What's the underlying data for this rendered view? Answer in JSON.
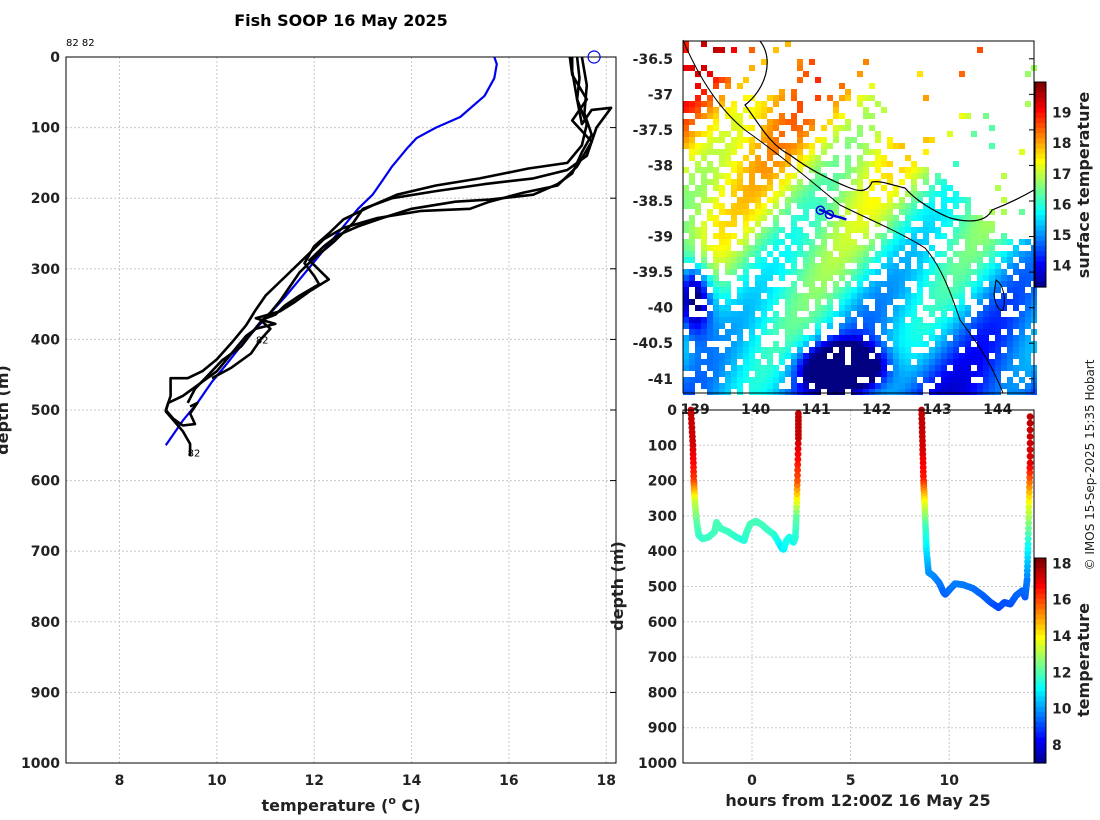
{
  "title": "Fish SOOP 16 May 2025",
  "watermark": "© IMOS 15-Sep-2025 15:35 Hobart",
  "chart_data": [
    {
      "type": "line",
      "name": "temperature-profile",
      "xlabel": "temperature (° C)",
      "xlabel_main": "temperature (",
      "xlabel_sup": "o",
      "xlabel_end": " C)",
      "ylabel": "depth (m)",
      "xlim": [
        6.9,
        18.2
      ],
      "ylim": [
        1000,
        0
      ],
      "xticks": [
        8,
        10,
        12,
        14,
        16,
        18
      ],
      "yticks": [
        0,
        100,
        200,
        300,
        400,
        500,
        600,
        700,
        800,
        900,
        1000
      ],
      "top_label": "82 82",
      "drop_labels": [
        "82",
        "82"
      ],
      "drop_label_points": [
        {
          "t": 10.8,
          "d": 400
        },
        {
          "t": 9.4,
          "d": 560
        }
      ],
      "surface_marker": {
        "t": 17.75,
        "d": 0
      },
      "series": [
        {
          "name": "climatology",
          "color": "#0000ee",
          "points": [
            [
              15.7,
              0
            ],
            [
              15.75,
              10
            ],
            [
              15.7,
              30
            ],
            [
              15.5,
              55
            ],
            [
              15.0,
              85
            ],
            [
              14.5,
              100
            ],
            [
              14.1,
              115
            ],
            [
              13.9,
              130
            ],
            [
              13.6,
              155
            ],
            [
              13.4,
              175
            ],
            [
              13.2,
              195
            ],
            [
              12.9,
              215
            ],
            [
              12.6,
              240
            ],
            [
              12.3,
              265
            ],
            [
              12.0,
              290
            ],
            [
              11.7,
              315
            ],
            [
              11.4,
              340
            ],
            [
              11.0,
              370
            ],
            [
              10.6,
              400
            ],
            [
              10.2,
              435
            ],
            [
              9.9,
              460
            ],
            [
              9.6,
              490
            ],
            [
              9.3,
              515
            ],
            [
              9.1,
              535
            ],
            [
              8.95,
              550
            ]
          ]
        },
        {
          "name": "profile-1",
          "color": "#000000",
          "points": [
            [
              17.3,
              0
            ],
            [
              17.3,
              20
            ],
            [
              17.4,
              60
            ],
            [
              17.5,
              95
            ],
            [
              17.7,
              75
            ],
            [
              18.1,
              72
            ],
            [
              17.8,
              100
            ],
            [
              17.6,
              140
            ],
            [
              17.2,
              160
            ],
            [
              16.5,
              172
            ],
            [
              15.5,
              180
            ],
            [
              14.5,
              190
            ],
            [
              13.6,
              200
            ],
            [
              13.0,
              215
            ],
            [
              12.8,
              235
            ],
            [
              12.4,
              262
            ],
            [
              12.0,
              285
            ],
            [
              11.7,
              305
            ],
            [
              11.5,
              325
            ],
            [
              11.3,
              345
            ],
            [
              11.1,
              362
            ],
            [
              10.9,
              375
            ],
            [
              10.7,
              392
            ],
            [
              10.5,
              410
            ],
            [
              10.1,
              430
            ],
            [
              9.8,
              452
            ],
            [
              9.55,
              470
            ],
            [
              9.4,
              490
            ]
          ]
        },
        {
          "name": "profile-2",
          "color": "#000000",
          "points": [
            [
              17.4,
              0
            ],
            [
              17.45,
              30
            ],
            [
              17.4,
              60
            ],
            [
              17.6,
              95
            ],
            [
              17.5,
              125
            ],
            [
              17.2,
              150
            ],
            [
              16.4,
              158
            ],
            [
              15.4,
              172
            ],
            [
              14.5,
              182
            ],
            [
              13.7,
              195
            ],
            [
              13.2,
              210
            ],
            [
              12.6,
              230
            ],
            [
              12.3,
              250
            ],
            [
              12.0,
              268
            ],
            [
              11.8,
              292
            ],
            [
              12.0,
              310
            ],
            [
              12.1,
              322
            ],
            [
              11.7,
              338
            ],
            [
              11.4,
              352
            ],
            [
              11.2,
              365
            ],
            [
              10.9,
              373
            ],
            [
              11.1,
              385
            ],
            [
              10.9,
              400
            ],
            [
              10.7,
              420
            ],
            [
              10.3,
              440
            ],
            [
              9.9,
              455
            ]
          ]
        },
        {
          "name": "profile-3",
          "color": "#000000",
          "points": [
            [
              17.5,
              0
            ],
            [
              17.6,
              40
            ],
            [
              17.55,
              80
            ],
            [
              17.7,
              110
            ],
            [
              17.5,
              135
            ],
            [
              17.3,
              165
            ],
            [
              17.0,
              180
            ],
            [
              16.5,
              195
            ],
            [
              15.6,
              202
            ],
            [
              14.9,
              205
            ],
            [
              14.0,
              215
            ],
            [
              13.4,
              228
            ],
            [
              12.9,
              240
            ],
            [
              12.5,
              252
            ],
            [
              12.2,
              268
            ],
            [
              11.9,
              288
            ],
            [
              12.3,
              315
            ],
            [
              11.9,
              332
            ],
            [
              11.6,
              347
            ],
            [
              11.3,
              360
            ],
            [
              10.8,
              370
            ],
            [
              11.2,
              378
            ],
            [
              10.8,
              385
            ],
            [
              10.6,
              395
            ],
            [
              10.3,
              420
            ],
            [
              10.0,
              445
            ],
            [
              9.7,
              460
            ],
            [
              9.3,
              480
            ],
            [
              9.0,
              490
            ],
            [
              8.95,
              502
            ],
            [
              9.1,
              514
            ],
            [
              9.3,
              530
            ],
            [
              9.45,
              548
            ],
            [
              9.45,
              565
            ]
          ]
        },
        {
          "name": "profile-4",
          "color": "#000000",
          "points": [
            [
              17.25,
              0
            ],
            [
              17.3,
              25
            ],
            [
              17.6,
              60
            ],
            [
              17.3,
              90
            ],
            [
              17.7,
              120
            ],
            [
              17.4,
              155
            ],
            [
              17.0,
              182
            ],
            [
              16.3,
              192
            ],
            [
              15.6,
              205
            ],
            [
              15.2,
              215
            ],
            [
              14.2,
              218
            ],
            [
              13.3,
              228
            ],
            [
              12.6,
              242
            ],
            [
              12.2,
              258
            ],
            [
              11.9,
              278
            ],
            [
              11.6,
              298
            ],
            [
              11.3,
              318
            ],
            [
              11.0,
              338
            ],
            [
              10.8,
              358
            ],
            [
              10.6,
              380
            ],
            [
              10.3,
              405
            ],
            [
              10.0,
              428
            ],
            [
              9.7,
              445
            ],
            [
              9.4,
              455
            ],
            [
              9.05,
              455
            ],
            [
              9.05,
              480
            ],
            [
              8.95,
              500
            ],
            [
              9.1,
              512
            ],
            [
              9.3,
              522
            ],
            [
              9.55,
              520
            ],
            [
              9.45,
              505
            ],
            [
              9.6,
              490
            ],
            [
              9.45,
              495
            ]
          ]
        }
      ]
    },
    {
      "type": "heatmap",
      "name": "sst-map",
      "xticks": [
        139,
        140,
        141,
        142,
        143,
        144
      ],
      "yticks": [
        -36.5,
        -37,
        -37.5,
        -38,
        -38.5,
        -39,
        -39.5,
        -40,
        -40.5,
        -41
      ],
      "ytick_labels": [
        "-36.5",
        "-37",
        "-37.5",
        "-38",
        "-38.5",
        "-39",
        "-39.5",
        "-40",
        "-40.5",
        "-41"
      ],
      "xlim": [
        138.8,
        144.6
      ],
      "ylim": [
        -41.2,
        -36.25
      ],
      "colorbar_label": "surface temperature",
      "colorbar_ticks": [
        14,
        15,
        16,
        17,
        18,
        19
      ],
      "colorbar_range": [
        13.3,
        20.0
      ],
      "track_lonlat": [
        [
          141.05,
          -38.62
        ],
        [
          141.15,
          -38.65
        ],
        [
          141.25,
          -38.7
        ],
        [
          141.4,
          -38.73
        ],
        [
          141.5,
          -38.76
        ]
      ],
      "track_markers": [
        [
          141.07,
          -38.63
        ],
        [
          141.22,
          -38.69
        ]
      ],
      "track_color": "#0000dd"
    },
    {
      "type": "scatter",
      "name": "depth-time-section",
      "xlabel": "hours from 12:00Z 16 May 25",
      "ylabel": "depth (m)",
      "xlim": [
        -3.5,
        14.3
      ],
      "ylim": [
        1000,
        0
      ],
      "xticks": [
        0,
        5,
        10
      ],
      "yticks": [
        0,
        100,
        200,
        300,
        400,
        500,
        600,
        700,
        800,
        900,
        1000
      ],
      "colorbar_label": "temperature",
      "colorbar_ticks": [
        8,
        10,
        12,
        14,
        16,
        18
      ],
      "colorbar_range": [
        7.0,
        18.3
      ],
      "series": [
        {
          "name": "drop-1",
          "points": [
            [
              -3.1,
              0,
              17.5
            ],
            [
              -3.0,
              100,
              17.4
            ],
            [
              -2.95,
              200,
              16.3
            ],
            [
              -2.9,
              260,
              13.5
            ],
            [
              -2.8,
              320,
              12.3
            ],
            [
              -2.7,
              355,
              11.9
            ],
            [
              -2.5,
              365,
              11.8
            ],
            [
              -2.2,
              360,
              11.9
            ],
            [
              -1.9,
              345,
              11.95
            ],
            [
              -1.8,
              318,
              12.1
            ],
            [
              -1.6,
              335,
              12.0
            ],
            [
              -1.2,
              345,
              11.9
            ],
            [
              -0.8,
              360,
              11.8
            ],
            [
              -0.4,
              370,
              11.6
            ],
            [
              -0.3,
              350,
              11.8
            ],
            [
              -0.1,
              323,
              12.0
            ],
            [
              0.2,
              315,
              12.0
            ],
            [
              0.5,
              325,
              12.0
            ],
            [
              0.8,
              340,
              11.9
            ],
            [
              1.1,
              352,
              11.8
            ],
            [
              1.3,
              370,
              11.5
            ],
            [
              1.5,
              390,
              11.0
            ],
            [
              1.6,
              395,
              11.1
            ],
            [
              1.75,
              370,
              11.4
            ],
            [
              1.9,
              360,
              11.5
            ],
            [
              2.1,
              375,
              11.4
            ],
            [
              2.2,
              360,
              11.6
            ],
            [
              2.25,
              300,
              12.3
            ],
            [
              2.3,
              200,
              16.0
            ],
            [
              2.35,
              80,
              17.5
            ],
            [
              2.35,
              0,
              17.6
            ]
          ]
        },
        {
          "name": "drop-2",
          "points": [
            [
              8.6,
              0,
              17.6
            ],
            [
              8.65,
              100,
              17.4
            ],
            [
              8.7,
              200,
              16.6
            ],
            [
              8.75,
              260,
              14.0
            ],
            [
              8.8,
              330,
              12.0
            ],
            [
              8.85,
              400,
              11.0
            ],
            [
              8.95,
              460,
              10.1
            ],
            [
              9.2,
              470,
              10.0
            ],
            [
              9.5,
              490,
              9.8
            ],
            [
              9.7,
              515,
              9.6
            ],
            [
              9.8,
              522,
              9.5
            ],
            [
              10.0,
              510,
              9.6
            ],
            [
              10.3,
              492,
              9.8
            ],
            [
              10.7,
              495,
              9.8
            ],
            [
              11.2,
              505,
              9.7
            ],
            [
              11.7,
              525,
              9.5
            ],
            [
              12.1,
              545,
              9.4
            ],
            [
              12.5,
              560,
              9.2
            ],
            [
              12.8,
              545,
              9.3
            ],
            [
              13.1,
              550,
              9.3
            ],
            [
              13.4,
              525,
              9.5
            ],
            [
              13.7,
              512,
              9.6
            ],
            [
              13.85,
              530,
              9.4
            ],
            [
              13.95,
              480,
              9.8
            ],
            [
              14.0,
              380,
              11.4
            ],
            [
              14.05,
              260,
              14.0
            ],
            [
              14.1,
              150,
              17.2
            ],
            [
              14.1,
              0,
              17.7
            ]
          ]
        }
      ]
    }
  ]
}
